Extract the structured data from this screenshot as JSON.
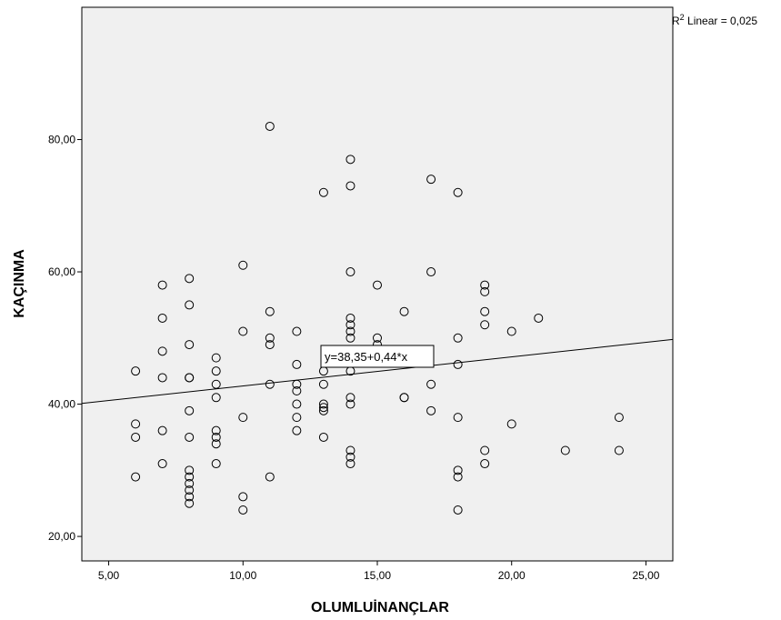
{
  "chart_data": {
    "type": "scatter",
    "xlabel": "OLUMLUİNANÇLAR",
    "ylabel": "KAÇINMA",
    "xlim": [
      4,
      26
    ],
    "ylim": [
      16.3,
      100
    ],
    "xticks": [
      5,
      10,
      15,
      20,
      25
    ],
    "xtick_labels": [
      "5,00",
      "10,00",
      "15,00",
      "20,00",
      "25,00"
    ],
    "yticks": [
      20,
      40,
      60,
      80
    ],
    "ytick_labels": [
      "20,00",
      "40,00",
      "60,00",
      "80,00"
    ],
    "grid": false,
    "background_color": "#f0f0f0",
    "marker": "open-circle",
    "fit_line": {
      "intercept": 38.35,
      "slope": 0.44
    },
    "equation_label": "y=38,35+0,44*x",
    "r2_prefix": "R",
    "r2_superscript": "2",
    "r2_text": " Linear = 0,025",
    "points": [
      {
        "x": 6,
        "y": 45
      },
      {
        "x": 6,
        "y": 37
      },
      {
        "x": 6,
        "y": 35
      },
      {
        "x": 6,
        "y": 29
      },
      {
        "x": 7,
        "y": 58
      },
      {
        "x": 7,
        "y": 53
      },
      {
        "x": 7,
        "y": 48
      },
      {
        "x": 7,
        "y": 44
      },
      {
        "x": 7,
        "y": 36
      },
      {
        "x": 7,
        "y": 31
      },
      {
        "x": 8,
        "y": 59
      },
      {
        "x": 8,
        "y": 55
      },
      {
        "x": 8,
        "y": 49
      },
      {
        "x": 8,
        "y": 44
      },
      {
        "x": 8,
        "y": 44
      },
      {
        "x": 8,
        "y": 39
      },
      {
        "x": 8,
        "y": 35
      },
      {
        "x": 8,
        "y": 30
      },
      {
        "x": 8,
        "y": 29
      },
      {
        "x": 8,
        "y": 28
      },
      {
        "x": 8,
        "y": 27
      },
      {
        "x": 8,
        "y": 26
      },
      {
        "x": 8,
        "y": 25
      },
      {
        "x": 9,
        "y": 47
      },
      {
        "x": 9,
        "y": 45
      },
      {
        "x": 9,
        "y": 43
      },
      {
        "x": 9,
        "y": 41
      },
      {
        "x": 9,
        "y": 36
      },
      {
        "x": 9,
        "y": 35
      },
      {
        "x": 9,
        "y": 34
      },
      {
        "x": 9,
        "y": 31
      },
      {
        "x": 10,
        "y": 61
      },
      {
        "x": 10,
        "y": 51
      },
      {
        "x": 10,
        "y": 38
      },
      {
        "x": 10,
        "y": 26
      },
      {
        "x": 10,
        "y": 24
      },
      {
        "x": 11,
        "y": 82
      },
      {
        "x": 11,
        "y": 54
      },
      {
        "x": 11,
        "y": 50
      },
      {
        "x": 11,
        "y": 49
      },
      {
        "x": 11,
        "y": 43
      },
      {
        "x": 11,
        "y": 29
      },
      {
        "x": 12,
        "y": 51
      },
      {
        "x": 12,
        "y": 46
      },
      {
        "x": 12,
        "y": 43
      },
      {
        "x": 12,
        "y": 42
      },
      {
        "x": 12,
        "y": 40
      },
      {
        "x": 12,
        "y": 38
      },
      {
        "x": 12,
        "y": 36
      },
      {
        "x": 13,
        "y": 72
      },
      {
        "x": 13,
        "y": 45
      },
      {
        "x": 13,
        "y": 43
      },
      {
        "x": 13,
        "y": 40
      },
      {
        "x": 13,
        "y": 39.5
      },
      {
        "x": 13,
        "y": 39
      },
      {
        "x": 13,
        "y": 35
      },
      {
        "x": 14,
        "y": 77
      },
      {
        "x": 14,
        "y": 73
      },
      {
        "x": 14,
        "y": 60
      },
      {
        "x": 14,
        "y": 53
      },
      {
        "x": 14,
        "y": 52
      },
      {
        "x": 14,
        "y": 51
      },
      {
        "x": 14,
        "y": 50
      },
      {
        "x": 14,
        "y": 47
      },
      {
        "x": 14,
        "y": 45
      },
      {
        "x": 14,
        "y": 41
      },
      {
        "x": 14,
        "y": 40
      },
      {
        "x": 14,
        "y": 33
      },
      {
        "x": 14,
        "y": 32
      },
      {
        "x": 14,
        "y": 31
      },
      {
        "x": 15,
        "y": 58
      },
      {
        "x": 15,
        "y": 50
      },
      {
        "x": 15,
        "y": 49
      },
      {
        "x": 15,
        "y": 48
      },
      {
        "x": 16,
        "y": 54
      },
      {
        "x": 16,
        "y": 41
      },
      {
        "x": 16,
        "y": 41
      },
      {
        "x": 17,
        "y": 74
      },
      {
        "x": 17,
        "y": 60
      },
      {
        "x": 17,
        "y": 43
      },
      {
        "x": 17,
        "y": 39
      },
      {
        "x": 18,
        "y": 72
      },
      {
        "x": 18,
        "y": 50
      },
      {
        "x": 18,
        "y": 46
      },
      {
        "x": 18,
        "y": 38
      },
      {
        "x": 18,
        "y": 30
      },
      {
        "x": 18,
        "y": 29
      },
      {
        "x": 18,
        "y": 24
      },
      {
        "x": 19,
        "y": 58
      },
      {
        "x": 19,
        "y": 57
      },
      {
        "x": 19,
        "y": 54
      },
      {
        "x": 19,
        "y": 52
      },
      {
        "x": 19,
        "y": 33
      },
      {
        "x": 19,
        "y": 31
      },
      {
        "x": 20,
        "y": 51
      },
      {
        "x": 20,
        "y": 37
      },
      {
        "x": 21,
        "y": 53
      },
      {
        "x": 22,
        "y": 33
      },
      {
        "x": 24,
        "y": 38
      },
      {
        "x": 24,
        "y": 33
      }
    ]
  }
}
